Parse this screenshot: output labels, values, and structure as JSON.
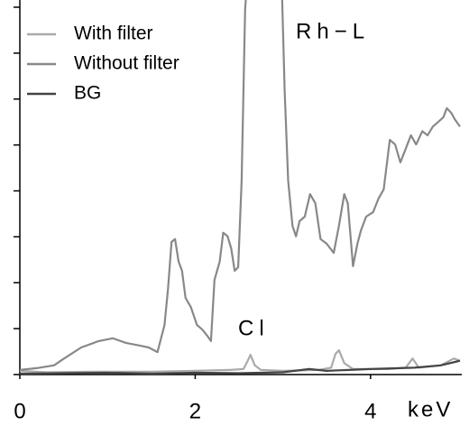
{
  "chart_data": {
    "type": "line",
    "annotations": [
      "Rh−L",
      "Cl"
    ],
    "x_label": "keV",
    "xlim": [
      0,
      5.02
    ],
    "xticks": [
      0,
      2,
      4
    ],
    "ylim": [
      0,
      8
    ],
    "yticks": [
      0,
      1,
      2,
      3,
      4,
      5,
      6,
      7,
      8
    ],
    "series": [
      {
        "name": "With filter",
        "color": "#aaaaaa",
        "x": [
          0,
          0.3,
          0.8,
          1.5,
          2.0,
          2.4,
          2.55,
          2.6,
          2.63,
          2.68,
          2.75,
          3.0,
          3.4,
          3.55,
          3.6,
          3.64,
          3.7,
          3.8,
          4.2,
          4.4,
          4.48,
          4.55,
          4.8,
          4.95,
          5.02
        ],
        "values": [
          0.08,
          0.05,
          0.06,
          0.06,
          0.08,
          0.1,
          0.12,
          0.3,
          0.43,
          0.2,
          0.1,
          0.08,
          0.1,
          0.15,
          0.45,
          0.53,
          0.25,
          0.12,
          0.12,
          0.15,
          0.35,
          0.15,
          0.2,
          0.35,
          0.3
        ]
      },
      {
        "name": "Without filter",
        "color": "#888888",
        "x": [
          0,
          0.19,
          0.39,
          0.49,
          0.7,
          0.9,
          1.06,
          1.21,
          1.37,
          1.47,
          1.57,
          1.65,
          1.69,
          1.73,
          1.77,
          1.81,
          1.85,
          1.89,
          1.95,
          2.02,
          2.08,
          2.14,
          2.18,
          2.22,
          2.28,
          2.32,
          2.37,
          2.41,
          2.45,
          2.49,
          2.53,
          2.57,
          2.61,
          2.98,
          3.02,
          3.06,
          3.11,
          3.15,
          3.19,
          3.25,
          3.31,
          3.37,
          3.43,
          3.5,
          3.58,
          3.64,
          3.7,
          3.74,
          3.8,
          3.85,
          3.89,
          3.95,
          4.03,
          4.09,
          4.15,
          4.22,
          4.28,
          4.34,
          4.4,
          4.46,
          4.52,
          4.59,
          4.65,
          4.71,
          4.77,
          4.83,
          4.87,
          4.92,
          4.96,
          5.02
        ],
        "values": [
          0.1,
          0.14,
          0.2,
          0.33,
          0.59,
          0.73,
          0.79,
          0.69,
          0.63,
          0.59,
          0.49,
          1.08,
          1.87,
          2.89,
          2.95,
          2.46,
          2.26,
          1.67,
          1.47,
          1.08,
          0.98,
          0.84,
          0.73,
          2.06,
          2.46,
          3.09,
          3.01,
          2.75,
          2.26,
          2.34,
          4.22,
          7.96,
          9,
          9,
          6.19,
          4.22,
          3.24,
          3.01,
          3.34,
          3.44,
          3.93,
          3.73,
          2.95,
          2.85,
          2.65,
          3.24,
          3.93,
          3.73,
          2.36,
          2.85,
          3.14,
          3.44,
          3.54,
          3.83,
          4.03,
          5.11,
          5.01,
          4.62,
          4.91,
          5.21,
          5.01,
          5.3,
          5.21,
          5.4,
          5.5,
          5.6,
          5.8,
          5.7,
          5.56,
          5.4
        ]
      },
      {
        "name": "BG",
        "color": "#444444",
        "x": [
          0,
          0.5,
          1.0,
          1.5,
          2.0,
          2.5,
          3.0,
          3.3,
          3.5,
          4.0,
          4.5,
          4.8,
          5.02
        ],
        "values": [
          0.02,
          0.03,
          0.04,
          0.02,
          0.04,
          0.03,
          0.05,
          0.12,
          0.08,
          0.12,
          0.15,
          0.2,
          0.3
        ]
      }
    ]
  }
}
